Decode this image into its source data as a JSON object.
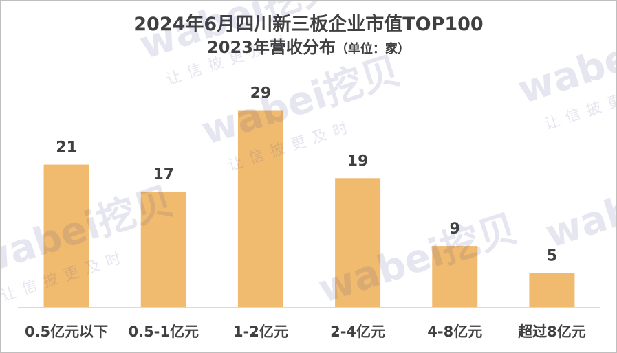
{
  "chart_data": {
    "type": "bar",
    "title": "2024年6月四川新三板企业市值TOP100",
    "subtitle": "2023年营收分布",
    "unit_note": "（单位：家）",
    "categories": [
      "0.5亿元以下",
      "0.5-1亿元",
      "1-2亿元",
      "2-4亿元",
      "4-8亿元",
      "超过8亿元"
    ],
    "values": [
      21,
      17,
      29,
      19,
      9,
      5
    ],
    "ylim": [
      0,
      33
    ],
    "grid": false,
    "legend": "none",
    "bar_color": "#F0BA6F",
    "label_color": "#404040"
  },
  "watermark": {
    "brand": "wabei挖贝",
    "slogan": "让信披更及时"
  }
}
